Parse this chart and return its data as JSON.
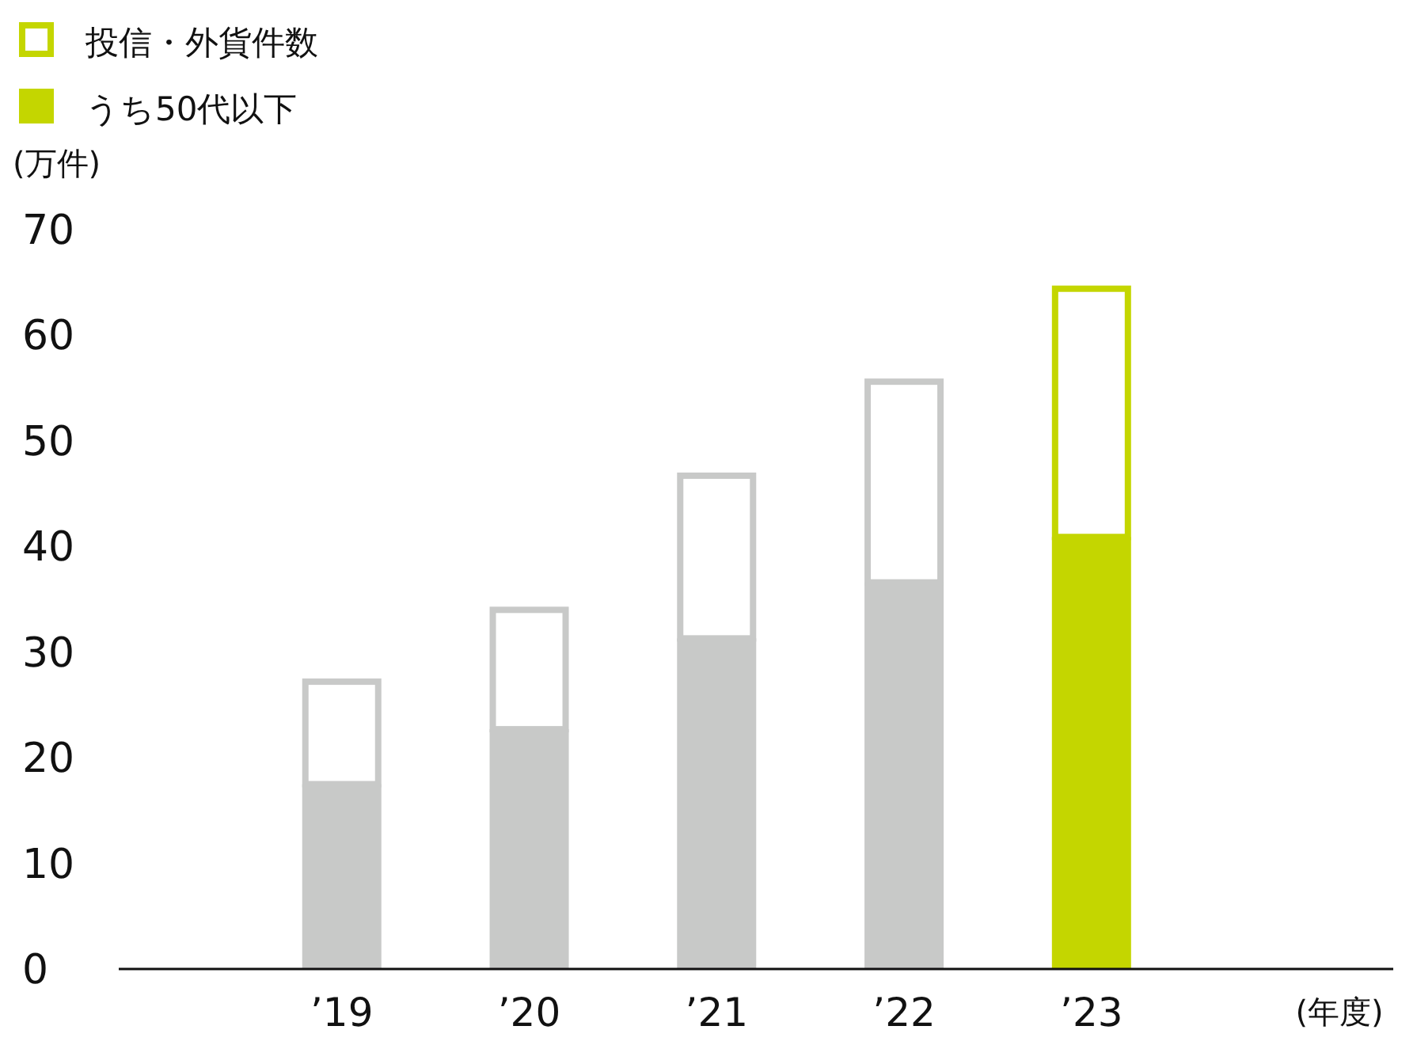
{
  "chart_data": {
    "type": "bar",
    "stacked": true,
    "ylabel": "(万件)",
    "xlabel": "(年度)",
    "categories": [
      "’19",
      "’20",
      "’21",
      "’22",
      "’23"
    ],
    "series": [
      {
        "name": "うち50代以下",
        "color": "#c4d600",
        "colors": [
          "#c8c9c8",
          "#c8c9c8",
          "#c8c9c8",
          "#c8c9c8",
          "#c4d600"
        ],
        "values": [
          17.5,
          22.7,
          31.3,
          36.6,
          40.9
        ]
      },
      {
        "name": "投信・外貨件数",
        "color": "#c4d600",
        "colors": [
          "#c8c9c8",
          "#c8c9c8",
          "#c8c9c8",
          "#c8c9c8",
          "#c4d600"
        ],
        "values": [
          10.0,
          11.6,
          15.7,
          19.3,
          23.8
        ]
      }
    ],
    "ylim": [
      0,
      70
    ],
    "yticks": [
      0,
      10,
      20,
      30,
      40,
      50,
      60,
      70
    ],
    "grid": false,
    "legend": "top left"
  }
}
